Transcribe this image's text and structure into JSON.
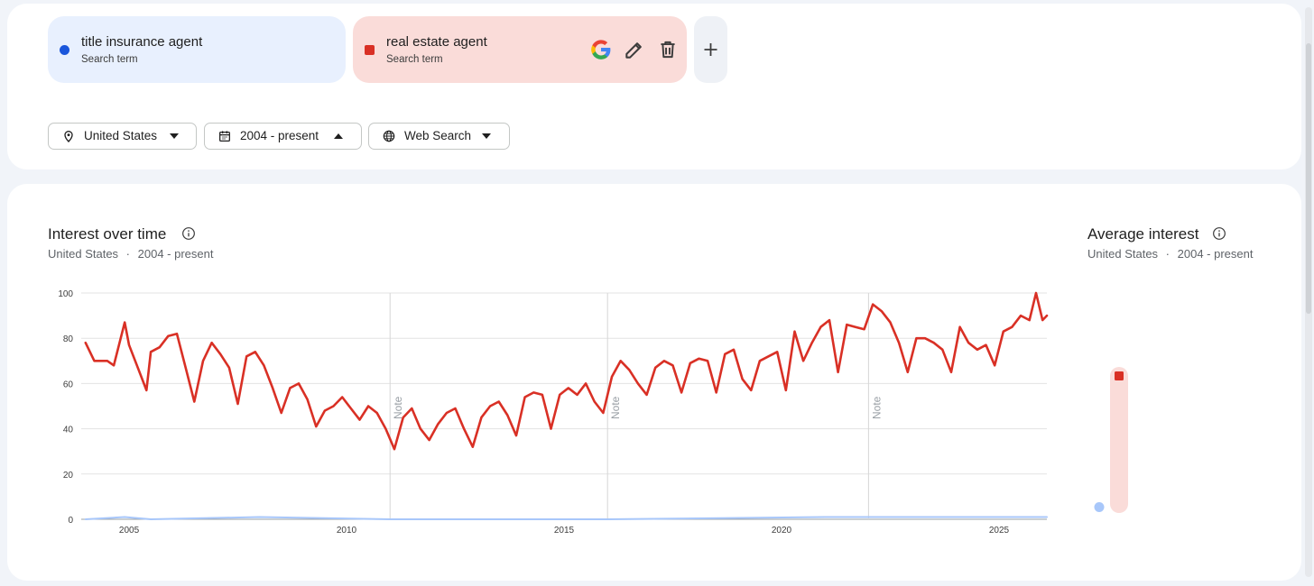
{
  "search_terms": [
    {
      "name": "title insurance agent",
      "type": "Search term",
      "color": "#1a56db",
      "marker": "dot-icon"
    },
    {
      "name": "real estate agent",
      "type": "Search term",
      "color": "#d93025",
      "marker": "square-icon"
    }
  ],
  "term_actions": {
    "google": "google-g-icon",
    "edit": "pencil-icon",
    "delete": "trash-icon",
    "add": "plus-icon"
  },
  "filters": {
    "region": {
      "label": "United States",
      "icon": "location-pin-icon",
      "caret": "caret-down-icon"
    },
    "time": {
      "label": "2004 - present",
      "icon": "calendar-icon",
      "caret": "caret-up-icon"
    },
    "source": {
      "label": "Web Search",
      "icon": "globe-icon",
      "caret": "caret-down-icon"
    }
  },
  "interest_over_time": {
    "title": "Interest over time",
    "sub_region": "United States",
    "sub_separator": "·",
    "sub_period": "2004 - present",
    "info_icon": "info-icon",
    "note_label": "Note"
  },
  "average_interest": {
    "title": "Average interest",
    "sub_region": "United States",
    "sub_separator": "·",
    "sub_period": "2004 - present",
    "info_icon": "info-icon",
    "values": [
      {
        "term": "title insurance agent",
        "value": 1
      },
      {
        "term": "real estate agent",
        "value": 60
      }
    ]
  },
  "chart_data": {
    "type": "line",
    "title": "",
    "xlabel": "",
    "ylabel": "",
    "xlim": [
      2003.9,
      2026.1
    ],
    "ylim": [
      0,
      100
    ],
    "x_ticks": [
      2005,
      2010,
      2015,
      2020,
      2025
    ],
    "x_tick_labels": [
      "2005",
      "2010",
      "2015",
      "2020",
      "2025"
    ],
    "y_ticks": [
      0,
      20,
      40,
      60,
      80,
      100
    ],
    "y_tick_labels": [
      "0",
      "20",
      "40",
      "60",
      "80",
      "100"
    ],
    "grid": true,
    "notes": [
      2011.0,
      2016.0,
      2022.0
    ],
    "series": [
      {
        "name": "real estate agent",
        "color": "#d93025",
        "points": [
          [
            2004.0,
            78
          ],
          [
            2004.2,
            70
          ],
          [
            2004.5,
            70
          ],
          [
            2004.65,
            68
          ],
          [
            2004.9,
            87
          ],
          [
            2005.0,
            77
          ],
          [
            2005.2,
            67
          ],
          [
            2005.4,
            57
          ],
          [
            2005.5,
            74
          ],
          [
            2005.7,
            76
          ],
          [
            2005.9,
            81
          ],
          [
            2006.1,
            82
          ],
          [
            2006.3,
            67
          ],
          [
            2006.5,
            52
          ],
          [
            2006.7,
            70
          ],
          [
            2006.9,
            78
          ],
          [
            2007.1,
            73
          ],
          [
            2007.3,
            67
          ],
          [
            2007.5,
            51
          ],
          [
            2007.7,
            72
          ],
          [
            2007.9,
            74
          ],
          [
            2008.1,
            68
          ],
          [
            2008.3,
            58
          ],
          [
            2008.5,
            47
          ],
          [
            2008.7,
            58
          ],
          [
            2008.9,
            60
          ],
          [
            2009.1,
            53
          ],
          [
            2009.3,
            41
          ],
          [
            2009.5,
            48
          ],
          [
            2009.7,
            50
          ],
          [
            2009.9,
            54
          ],
          [
            2010.1,
            49
          ],
          [
            2010.3,
            44
          ],
          [
            2010.5,
            50
          ],
          [
            2010.7,
            47
          ],
          [
            2010.9,
            40
          ],
          [
            2011.1,
            31
          ],
          [
            2011.3,
            45
          ],
          [
            2011.5,
            49
          ],
          [
            2011.7,
            40
          ],
          [
            2011.9,
            35
          ],
          [
            2012.1,
            42
          ],
          [
            2012.3,
            47
          ],
          [
            2012.5,
            49
          ],
          [
            2012.7,
            40
          ],
          [
            2012.9,
            32
          ],
          [
            2013.1,
            45
          ],
          [
            2013.3,
            50
          ],
          [
            2013.5,
            52
          ],
          [
            2013.7,
            46
          ],
          [
            2013.9,
            37
          ],
          [
            2014.1,
            54
          ],
          [
            2014.3,
            56
          ],
          [
            2014.5,
            55
          ],
          [
            2014.7,
            40
          ],
          [
            2014.9,
            55
          ],
          [
            2015.1,
            58
          ],
          [
            2015.3,
            55
          ],
          [
            2015.5,
            60
          ],
          [
            2015.7,
            52
          ],
          [
            2015.9,
            47
          ],
          [
            2016.1,
            63
          ],
          [
            2016.3,
            70
          ],
          [
            2016.5,
            66
          ],
          [
            2016.7,
            60
          ],
          [
            2016.9,
            55
          ],
          [
            2017.1,
            67
          ],
          [
            2017.3,
            70
          ],
          [
            2017.5,
            68
          ],
          [
            2017.7,
            56
          ],
          [
            2017.9,
            69
          ],
          [
            2018.1,
            71
          ],
          [
            2018.3,
            70
          ],
          [
            2018.5,
            56
          ],
          [
            2018.7,
            73
          ],
          [
            2018.9,
            75
          ],
          [
            2019.1,
            62
          ],
          [
            2019.3,
            57
          ],
          [
            2019.5,
            70
          ],
          [
            2019.7,
            72
          ],
          [
            2019.9,
            74
          ],
          [
            2020.1,
            57
          ],
          [
            2020.3,
            83
          ],
          [
            2020.5,
            70
          ],
          [
            2020.7,
            78
          ],
          [
            2020.9,
            85
          ],
          [
            2021.1,
            88
          ],
          [
            2021.3,
            65
          ],
          [
            2021.5,
            86
          ],
          [
            2021.7,
            85
          ],
          [
            2021.9,
            84
          ],
          [
            2022.1,
            95
          ],
          [
            2022.3,
            92
          ],
          [
            2022.5,
            87
          ],
          [
            2022.7,
            78
          ],
          [
            2022.9,
            65
          ],
          [
            2023.1,
            80
          ],
          [
            2023.3,
            80
          ],
          [
            2023.5,
            78
          ],
          [
            2023.7,
            75
          ],
          [
            2023.9,
            65
          ],
          [
            2024.1,
            85
          ],
          [
            2024.3,
            78
          ],
          [
            2024.5,
            75
          ],
          [
            2024.7,
            77
          ],
          [
            2024.9,
            68
          ],
          [
            2025.1,
            83
          ],
          [
            2025.3,
            85
          ],
          [
            2025.5,
            90
          ],
          [
            2025.7,
            88
          ],
          [
            2025.85,
            100
          ],
          [
            2026.0,
            88
          ],
          [
            2026.1,
            90
          ]
        ]
      },
      {
        "name": "title insurance agent",
        "color": "#a8c7fa",
        "points": [
          [
            2004.0,
            0
          ],
          [
            2004.9,
            1
          ],
          [
            2005.5,
            0
          ],
          [
            2008.0,
            1
          ],
          [
            2011.0,
            0
          ],
          [
            2014.0,
            0
          ],
          [
            2016.0,
            0
          ],
          [
            2021.0,
            1
          ],
          [
            2022.0,
            1
          ],
          [
            2023.0,
            1
          ],
          [
            2024.0,
            1
          ],
          [
            2025.0,
            1
          ],
          [
            2026.1,
            1
          ]
        ]
      }
    ]
  }
}
